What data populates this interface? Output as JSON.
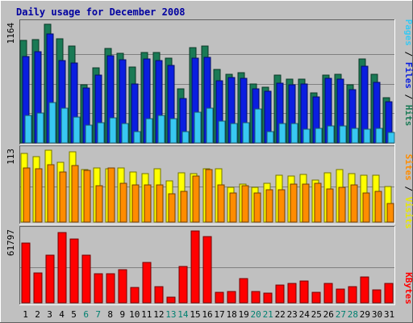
{
  "chart_data": {
    "type": "bar",
    "title": "Daily usage for December 2008",
    "categories": [
      "1",
      "2",
      "3",
      "4",
      "5",
      "6",
      "7",
      "8",
      "9",
      "10",
      "11",
      "12",
      "13",
      "14",
      "15",
      "16",
      "17",
      "18",
      "19",
      "20",
      "21",
      "22",
      "23",
      "24",
      "25",
      "26",
      "27",
      "28",
      "29",
      "30",
      "31"
    ],
    "weekend_days": [
      "6",
      "7",
      "13",
      "14",
      "20",
      "21",
      "27",
      "28"
    ],
    "panels": [
      {
        "id": "hits",
        "ymax_label": "1164",
        "ymax": 1164,
        "series": [
          {
            "name": "Hits",
            "color": "#1a7a55",
            "values": [
              1008,
              1011,
              1164,
              1021,
              947,
              571,
              736,
              925,
              875,
              747,
              886,
              886,
              829,
              528,
              936,
              947,
              720,
              674,
              687,
              581,
              549,
              666,
              628,
              628,
              489,
              666,
              675,
              567,
              820,
              670,
              447
            ]
          },
          {
            "name": "Files",
            "color": "#0a1ee0",
            "values": [
              850,
              898,
              1071,
              810,
              782,
              541,
              666,
              856,
              816,
              577,
              823,
              809,
              763,
              435,
              835,
              840,
              610,
              641,
              630,
              528,
              506,
              588,
              570,
              582,
              453,
              632,
              623,
              520,
              749,
              591,
              404
            ]
          },
          {
            "name": "Pages",
            "color": "#38c8f2",
            "values": [
              273,
              295,
              392,
              338,
              252,
              172,
              196,
              246,
              191,
              111,
              235,
              269,
              237,
              111,
              301,
              339,
              214,
              192,
              201,
              332,
              110,
              192,
              191,
              136,
              143,
              169,
              168,
              144,
              132,
              143,
              101
            ]
          }
        ]
      },
      {
        "id": "visits",
        "ymax_label": "113",
        "ymax": 113,
        "series": [
          {
            "name": "Visits",
            "color": "#ffff00",
            "values": [
              108,
              103,
              113,
              94,
              110,
              82,
              85,
              84,
              85,
              79,
              76,
              84,
              65,
              78,
              76,
              84,
              84,
              55,
              60,
              55,
              61,
              74,
              73,
              75,
              66,
              78,
              82,
              76,
              74,
              74,
              56
            ]
          },
          {
            "name": "Sites",
            "color": "#ff8c00",
            "values": [
              85,
              84,
              90,
              79,
              89,
              81,
              57,
              85,
              61,
              59,
              59,
              59,
              44,
              48,
              72,
              82,
              59,
              46,
              57,
              46,
              51,
              51,
              60,
              60,
              61,
              52,
              54,
              59,
              46,
              48,
              29
            ]
          }
        ]
      },
      {
        "id": "kbytes",
        "ymax_label": "61797",
        "ymax": 61797,
        "series": [
          {
            "name": "KBytes",
            "color": "#ff0000",
            "values": [
              51400,
              26000,
              41000,
              60600,
              54700,
              41000,
              24800,
              24800,
              28500,
              13400,
              34600,
              14000,
              5000,
              31000,
              62000,
              56800,
              9000,
              10000,
              21000,
              10000,
              8000,
              15000,
              17000,
              19000,
              9000,
              17000,
              12000,
              14000,
              22000,
              11000,
              17000
            ]
          }
        ]
      }
    ],
    "legend_right": [
      {
        "text": "Hits",
        "color": "#1a7a55"
      },
      {
        "text": "Files",
        "color": "#0a1ee0"
      },
      {
        "text": "Pages",
        "color": "#38c8f2"
      },
      {
        "text": "Visits",
        "color": "#e8e800"
      },
      {
        "text": "Sites",
        "color": "#ff8c00"
      },
      {
        "text": "KBytes",
        "color": "#ff0000"
      }
    ],
    "grid": true,
    "colors": {
      "background": "#c0c0c0",
      "plot_background": "#c0c0c0",
      "title": "#0000a0",
      "weekday_label": "#000000",
      "weekend_label": "#008070",
      "axis_label": "#000000"
    }
  }
}
